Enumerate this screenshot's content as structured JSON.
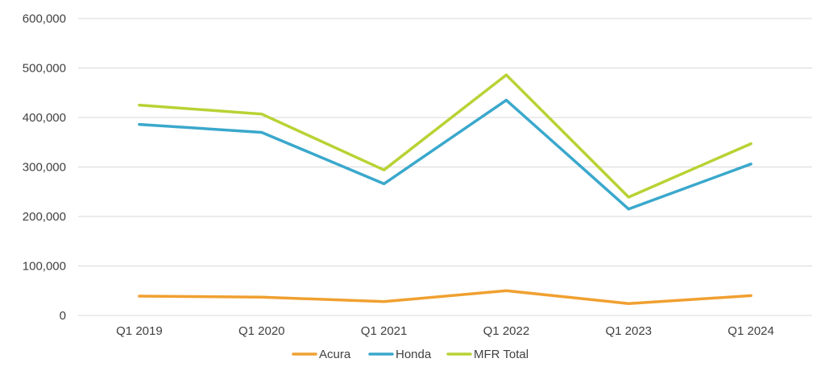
{
  "chart_data": {
    "type": "line",
    "categories": [
      "Q1 2019",
      "Q1 2020",
      "Q1 2021",
      "Q1 2022",
      "Q1 2023",
      "Q1 2024"
    ],
    "series": [
      {
        "name": "Acura",
        "color": "#f0a030",
        "values": [
          39000,
          37000,
          28000,
          50000,
          24000,
          40000
        ]
      },
      {
        "name": "Honda",
        "color": "#3aa8cc",
        "values": [
          386000,
          370000,
          266000,
          435000,
          215000,
          306000
        ]
      },
      {
        "name": "MFR Total",
        "color": "#b9d234",
        "values": [
          425000,
          407000,
          294000,
          486000,
          239000,
          347000
        ]
      }
    ],
    "title": "",
    "xlabel": "",
    "ylabel": "",
    "ylim": [
      0,
      600000
    ],
    "yticks": [
      0,
      100000,
      200000,
      300000,
      400000,
      500000,
      600000
    ],
    "ytick_labels": [
      "0",
      "100,000",
      "200,000",
      "300,000",
      "400,000",
      "500,000",
      "600,000"
    ],
    "grid": "horizontal",
    "legend_position": "bottom"
  }
}
